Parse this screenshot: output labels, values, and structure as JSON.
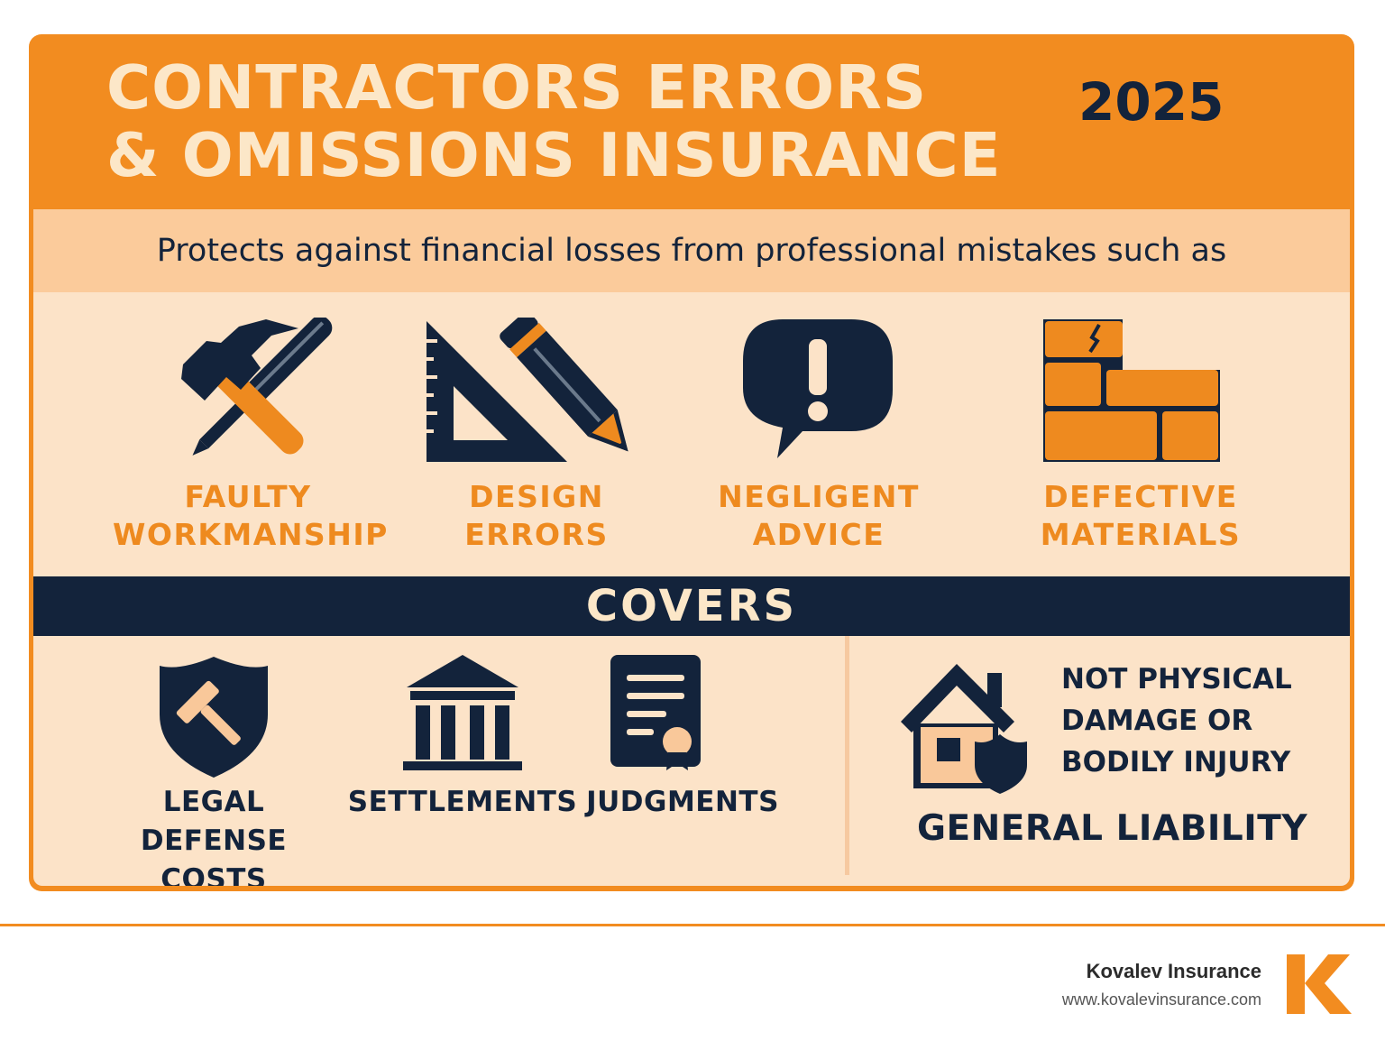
{
  "header": {
    "title_line1": "CONTRACTORS ERRORS",
    "title_line2": "& OMISSIONS INSURANCE",
    "year": "2025"
  },
  "subtitle": "Protects against financial losses from professional mistakes such as",
  "risks": [
    {
      "icon": "hammer-screwdriver-icon",
      "line1": "FAULTY",
      "line2": "WORKMANSHIP"
    },
    {
      "icon": "triangle-ruler-pencil-icon",
      "line1": "DESIGN",
      "line2": "ERRORS"
    },
    {
      "icon": "exclamation-speech-bubble-icon",
      "line1": "NEGLIGENT",
      "line2": "ADVICE"
    },
    {
      "icon": "cracked-bricks-icon",
      "line1": "DEFECTIVE",
      "line2": "MATERIALS"
    }
  ],
  "covers_heading": "COVERS",
  "covers": [
    {
      "icon": "shield-gavel-icon",
      "line1": "LEGAL DEFENSE",
      "line2": "COSTS"
    },
    {
      "icon": "courthouse-icon",
      "line1": "SETTLEMENTS",
      "line2": ""
    },
    {
      "icon": "document-seal-icon",
      "line1": "JUDGMENTS",
      "line2": ""
    }
  ],
  "general_liability": {
    "icon": "house-shield-icon",
    "note_line1": "NOT PHYSICAL",
    "note_line2": "DAMAGE OR",
    "note_line3": "BODILY INJURY",
    "title": "GENERAL LIABILITY"
  },
  "footer": {
    "brand_name": "Kovalev Insurance",
    "url": "www.kovalevinsurance.com",
    "logo_letter": "K"
  },
  "colors": {
    "orange": "#f28c20",
    "navy": "#13233b",
    "cream": "#fce3c8",
    "band": "#fbcb9b"
  }
}
